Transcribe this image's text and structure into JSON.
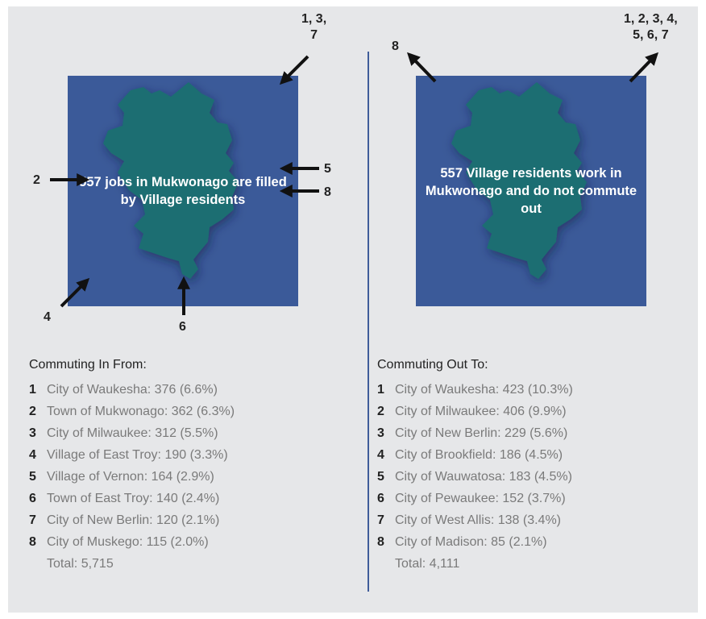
{
  "left": {
    "map_text": "557 jobs in Mukwonago are filled by Village residents",
    "arrow_labels": {
      "top_right": "1, 3,\n7",
      "left": "2",
      "right_upper": "5",
      "right_lower": "8",
      "bottom_left": "4",
      "bottom": "6"
    },
    "list_title": "Commuting In From:",
    "items": [
      {
        "num": "1",
        "text": "City of Waukesha: 376 (6.6%)"
      },
      {
        "num": "2",
        "text": "Town of Mukwonago: 362 (6.3%)"
      },
      {
        "num": "3",
        "text": "City of Milwaukee: 312 (5.5%)"
      },
      {
        "num": "4",
        "text": "Village of East Troy: 190 (3.3%)"
      },
      {
        "num": "5",
        "text": "Village of Vernon: 164 (2.9%)"
      },
      {
        "num": "6",
        "text": "Town of East Troy: 140 (2.4%)"
      },
      {
        "num": "7",
        "text": "City of New Berlin: 120 (2.1%)"
      },
      {
        "num": "8",
        "text": "City of Muskego: 115 (2.0%)"
      }
    ],
    "total": "Total: 5,715"
  },
  "right": {
    "map_text": "557 Village residents work in Mukwonago and do not commute out",
    "arrow_labels": {
      "top_left": "8",
      "top_right": "1, 2, 3, 4,\n5, 6, 7"
    },
    "list_title": "Commuting Out To:",
    "items": [
      {
        "num": "1",
        "text": "City of Waukesha: 423 (10.3%)"
      },
      {
        "num": "2",
        "text": "City of Milwaukee: 406 (9.9%)"
      },
      {
        "num": "3",
        "text": "City of New Berlin: 229 (5.6%)"
      },
      {
        "num": "4",
        "text": "City of Brookfield: 186 (4.5%)"
      },
      {
        "num": "5",
        "text": "City of Wauwatosa: 183 (4.5%)"
      },
      {
        "num": "6",
        "text": "City of Pewaukee: 152 (3.7%)"
      },
      {
        "num": "7",
        "text": "City of West Allis: 138 (3.4%)"
      },
      {
        "num": "8",
        "text": "City of Madison: 85 (2.1%)"
      }
    ],
    "total": "Total: 4,111"
  },
  "colors": {
    "background": "#e6e7e9",
    "map_square": "#3b5a99",
    "village_shape": "#1a6e72",
    "divider": "#3f5c99",
    "arrow": "#111111"
  }
}
